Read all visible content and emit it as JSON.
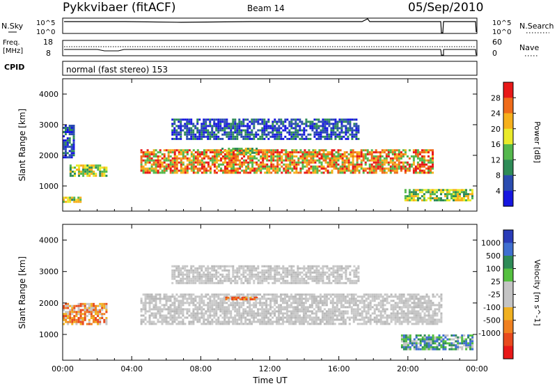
{
  "header": {
    "station": "Pykkvibaer (fitACF)",
    "beam": "Beam 14",
    "date": "05/Sep/2010"
  },
  "panels": {
    "nsky": {
      "left_label": "N.Sky",
      "right_label": "N.Search",
      "left_ticks": [
        "10^5",
        "10^0"
      ],
      "right_ticks": [
        "10^5",
        "10^0"
      ]
    },
    "freq": {
      "left_label_1": "Freq.",
      "left_label_2": "[MHz]",
      "right_label": "Nave",
      "left_ticks": [
        "18",
        "8"
      ],
      "right_ticks": [
        "60",
        "0"
      ]
    },
    "cpid": {
      "label": "CPID",
      "text": "normal (fast stereo) 153"
    }
  },
  "chart_data": [
    {
      "type": "heatmap",
      "name": "power",
      "ylabel": "Slant Range [km]",
      "xlabel": "",
      "x_range": [
        "00:00",
        "24:00"
      ],
      "ylim": [
        180,
        4500
      ],
      "yticks": [
        1000,
        2000,
        3000,
        4000
      ],
      "xticks": [
        "00:00",
        "04:00",
        "08:00",
        "12:00",
        "16:00",
        "20:00",
        "00:00"
      ],
      "colorbar": {
        "label": "Power [dB]",
        "ticks": [
          "28",
          "24",
          "20",
          "16",
          "12",
          "8",
          "4"
        ],
        "colors": [
          "#e81818",
          "#ef6b1a",
          "#f6b01c",
          "#eaea2a",
          "#55b84d",
          "#2e8b57",
          "#2a4cb0",
          "#1616e0"
        ]
      },
      "regions": [
        {
          "t": [
            0.0,
            0.7
          ],
          "r": [
            1900,
            3000
          ],
          "level": "low"
        },
        {
          "t": [
            0.4,
            2.6
          ],
          "r": [
            1300,
            1700
          ],
          "level": "medium"
        },
        {
          "t": [
            0.0,
            1.1
          ],
          "r": [
            450,
            650
          ],
          "level": "medium"
        },
        {
          "t": [
            4.5,
            21.5
          ],
          "r": [
            1400,
            2200
          ],
          "level": "high"
        },
        {
          "t": [
            6.3,
            17.2
          ],
          "r": [
            2500,
            3200
          ],
          "level": "low"
        },
        {
          "t": [
            9.2,
            11.3
          ],
          "r": [
            2050,
            2250
          ],
          "level": "medium"
        },
        {
          "t": [
            19.8,
            23.8
          ],
          "r": [
            500,
            900
          ],
          "level": "medium"
        }
      ]
    },
    {
      "type": "heatmap",
      "name": "velocity",
      "ylabel": "Slant Range [km]",
      "xlabel": "Time UT",
      "x_range": [
        "00:00",
        "24:00"
      ],
      "ylim": [
        180,
        4500
      ],
      "yticks": [
        1000,
        2000,
        3000,
        4000
      ],
      "xticks": [
        "00:00",
        "04:00",
        "08:00",
        "12:00",
        "16:00",
        "20:00",
        "00:00"
      ],
      "colorbar": {
        "label": "Velocity [m s^-1]",
        "ticks": [
          "1000",
          "500",
          "100",
          "25",
          "-25",
          "-100",
          "-500",
          "-1000"
        ],
        "colors": [
          "#2a3cb8",
          "#3f6fd0",
          "#2e8b57",
          "#55c040",
          "#c4c4c4",
          "#c4c4c4",
          "#f0b020",
          "#f08020",
          "#e84a1e",
          "#e81818"
        ]
      },
      "regions": [
        {
          "t": [
            0.0,
            2.6
          ],
          "r": [
            1300,
            2000
          ],
          "level": "negative"
        },
        {
          "t": [
            4.5,
            22.0
          ],
          "r": [
            1300,
            2300
          ],
          "level": "near-zero"
        },
        {
          "t": [
            6.3,
            17.2
          ],
          "r": [
            2600,
            3200
          ],
          "level": "near-zero"
        },
        {
          "t": [
            9.3,
            11.3
          ],
          "r": [
            2100,
            2200
          ],
          "level": "negative"
        },
        {
          "t": [
            19.6,
            23.8
          ],
          "r": [
            500,
            1000
          ],
          "level": "positive"
        }
      ]
    }
  ]
}
